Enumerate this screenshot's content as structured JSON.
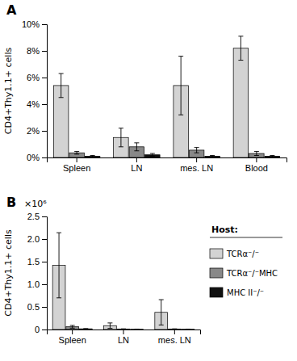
{
  "chart_data": [
    {
      "type": "bar",
      "title": "A",
      "categories": [
        "Spleen",
        "LN",
        "mes. LN",
        "Blood"
      ],
      "series": [
        {
          "name": "TCRα⁻/⁻",
          "color": "#d3d3d3",
          "values": [
            5.4,
            1.5,
            5.4,
            8.2
          ],
          "errors": [
            0.9,
            0.7,
            2.2,
            0.9
          ]
        },
        {
          "name": "TCRα⁻/⁻MHC",
          "color": "#888888",
          "values": [
            0.35,
            0.8,
            0.55,
            0.3
          ],
          "errors": [
            0.1,
            0.3,
            0.2,
            0.15
          ]
        },
        {
          "name": "MHC II⁻/⁻",
          "color": "#111111",
          "values": [
            0.1,
            0.2,
            0.1,
            0.1
          ],
          "errors": [
            0.05,
            0.1,
            0.05,
            0.05
          ]
        }
      ],
      "ylabel": "CD4+Thy1.1+ cells",
      "ylim": [
        0,
        10
      ],
      "yticks": [
        {
          "value": 0,
          "label": "0%"
        },
        {
          "value": 2,
          "label": "2%"
        },
        {
          "value": 4,
          "label": "4%"
        },
        {
          "value": 6,
          "label": "6%"
        },
        {
          "value": 8,
          "label": "8%"
        },
        {
          "value": 10,
          "label": "10%"
        }
      ]
    },
    {
      "type": "bar",
      "title": "B",
      "categories": [
        "Spleen",
        "LN",
        "mes. LN"
      ],
      "series": [
        {
          "name": "TCRα⁻/⁻",
          "color": "#d3d3d3",
          "values": [
            1.42,
            0.085,
            0.38
          ],
          "errors": [
            0.72,
            0.06,
            0.28
          ]
        },
        {
          "name": "TCRα⁻/⁻MHC",
          "color": "#888888",
          "values": [
            0.06,
            0.01,
            0.01
          ],
          "errors": [
            0.03,
            0.005,
            0.005
          ]
        },
        {
          "name": "MHC II⁻/⁻",
          "color": "#111111",
          "values": [
            0.015,
            0.005,
            0.005
          ],
          "errors": [
            0.005,
            0.002,
            0.002
          ]
        }
      ],
      "ylabel": "CD4+Thy1.1+ cells",
      "ylim": [
        0,
        2.5
      ],
      "yticks": [
        0,
        0.5,
        {
          "value": 1.0,
          "label": "1.0"
        },
        1.5,
        {
          "value": 2.0,
          "label": "2.0"
        },
        2.5
      ],
      "annotations": [
        "×10⁶",
        "Host:"
      ],
      "legend": "right"
    }
  ]
}
